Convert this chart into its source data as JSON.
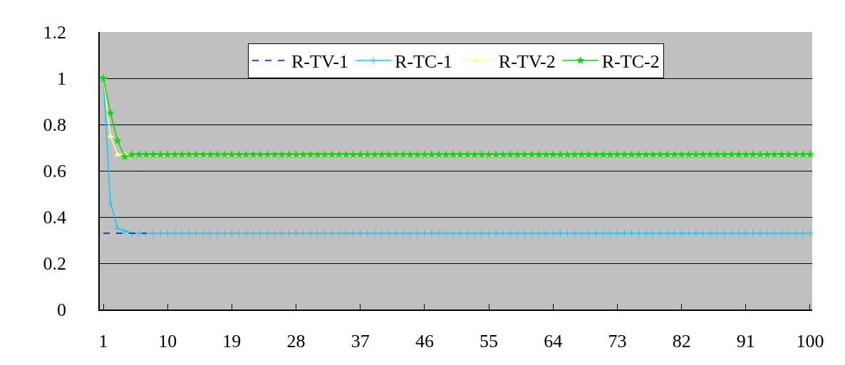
{
  "chart_data": {
    "type": "line",
    "legend": "top",
    "grid": "y",
    "x": [
      1,
      2,
      3,
      4,
      5,
      6,
      7,
      8,
      9,
      10,
      11,
      12,
      13,
      14,
      15,
      16,
      17,
      18,
      19,
      20,
      21,
      22,
      23,
      24,
      25,
      26,
      27,
      28,
      29,
      30,
      31,
      32,
      33,
      34,
      35,
      36,
      37,
      38,
      39,
      40,
      41,
      42,
      43,
      44,
      45,
      46,
      47,
      48,
      49,
      50,
      51,
      52,
      53,
      54,
      55,
      56,
      57,
      58,
      59,
      60,
      61,
      62,
      63,
      64,
      65,
      66,
      67,
      68,
      69,
      70,
      71,
      72,
      73,
      74,
      75,
      76,
      77,
      78,
      79,
      80,
      81,
      82,
      83,
      84,
      85,
      86,
      87,
      88,
      89,
      90,
      91,
      92,
      93,
      94,
      95,
      96,
      97,
      98,
      99,
      100
    ],
    "xlim": [
      0.5,
      100.3
    ],
    "xticks": [
      1,
      10,
      19,
      28,
      37,
      46,
      55,
      64,
      73,
      82,
      91,
      100
    ],
    "ylim": [
      0,
      1.2
    ],
    "yticks": [
      0,
      0.2,
      0.4,
      0.6,
      0.8,
      1,
      1.2
    ],
    "series": [
      {
        "name": "R-TV-1",
        "color": "#0000ff",
        "marker": "none",
        "line_style": "dashed",
        "values": [
          0.33,
          0.33,
          0.33,
          0.33,
          0.33,
          0.33,
          0.33,
          null,
          null,
          null,
          null,
          null,
          null,
          null,
          null,
          null,
          null,
          null,
          null,
          null,
          null,
          null,
          null,
          null,
          null,
          null,
          null,
          null,
          null,
          null,
          null,
          null,
          null,
          null,
          null,
          null,
          null,
          null,
          null,
          null,
          null,
          null,
          null,
          null,
          null,
          null,
          null,
          null,
          null,
          null,
          null,
          null,
          null,
          null,
          null,
          null,
          null,
          null,
          null,
          null,
          null,
          null,
          null,
          null,
          null,
          null,
          null,
          null,
          null,
          null,
          null,
          null,
          null,
          null,
          null,
          null,
          null,
          null,
          null,
          null,
          null,
          null,
          null,
          null,
          null,
          null,
          null,
          null,
          null,
          null,
          null,
          null,
          null,
          null,
          null,
          null,
          null,
          null,
          null,
          null
        ]
      },
      {
        "name": "R-TC-1",
        "color": "#00ccff",
        "marker": "cross",
        "values": [
          1,
          0.46,
          0.35,
          0.34,
          0.33,
          0.33,
          0.33,
          0.33,
          0.33,
          0.33,
          0.33,
          0.33,
          0.33,
          0.33,
          0.33,
          0.33,
          0.33,
          0.33,
          0.33,
          0.33,
          0.33,
          0.33,
          0.33,
          0.33,
          0.33,
          0.33,
          0.33,
          0.33,
          0.33,
          0.33,
          0.33,
          0.33,
          0.33,
          0.33,
          0.33,
          0.33,
          0.33,
          0.33,
          0.33,
          0.33,
          0.33,
          0.33,
          0.33,
          0.33,
          0.33,
          0.33,
          0.33,
          0.33,
          0.33,
          0.33,
          0.33,
          0.33,
          0.33,
          0.33,
          0.33,
          0.33,
          0.33,
          0.33,
          0.33,
          0.33,
          0.33,
          0.33,
          0.33,
          0.33,
          0.33,
          0.33,
          0.33,
          0.33,
          0.33,
          0.33,
          0.33,
          0.33,
          0.33,
          0.33,
          0.33,
          0.33,
          0.33,
          0.33,
          0.33,
          0.33,
          0.33,
          0.33,
          0.33,
          0.33,
          0.33,
          0.33,
          0.33,
          0.33,
          0.33,
          0.33,
          0.33,
          0.33,
          0.33,
          0.33,
          0.33,
          0.33,
          0.33,
          0.33,
          0.33,
          0.33
        ]
      },
      {
        "name": "R-TV-2",
        "color": "#ffff99",
        "marker": "triangle",
        "values": [
          1,
          0.75,
          0.67,
          0.67,
          0.67,
          0.67,
          0.67,
          0.67,
          0.67,
          0.67,
          0.67,
          0.67,
          0.67,
          0.67,
          0.67,
          0.67,
          0.67,
          0.67,
          0.67,
          0.67,
          0.67,
          0.67,
          0.67,
          0.67,
          0.67,
          0.67,
          0.67,
          0.67,
          0.67,
          0.67,
          0.67,
          0.67,
          0.67,
          0.67,
          0.67,
          0.67,
          0.67,
          0.67,
          0.67,
          0.67,
          0.67,
          0.67,
          0.67,
          0.67,
          0.67,
          0.67,
          0.67,
          0.67,
          0.67,
          0.67,
          0.67,
          0.67,
          0.67,
          0.67,
          0.67,
          0.67,
          0.67,
          0.67,
          0.67,
          0.67,
          0.67,
          0.67,
          0.67,
          0.67,
          0.67,
          0.67,
          0.67,
          0.67,
          0.67,
          0.67,
          0.67,
          0.67,
          0.67,
          0.67,
          0.67,
          0.67,
          0.67,
          0.67,
          0.67,
          0.67,
          0.67,
          0.67,
          0.67,
          0.67,
          0.67,
          0.67,
          0.67,
          0.67,
          0.67,
          0.67,
          0.67,
          0.67,
          0.67,
          0.67,
          0.67,
          0.67,
          0.67,
          0.67,
          0.67,
          0.67
        ]
      },
      {
        "name": "R-TC-2",
        "color": "#00dd00",
        "marker": "star",
        "values": [
          1,
          0.85,
          0.73,
          0.66,
          0.67,
          0.67,
          0.67,
          0.67,
          0.67,
          0.67,
          0.67,
          0.67,
          0.67,
          0.67,
          0.67,
          0.67,
          0.67,
          0.67,
          0.67,
          0.67,
          0.67,
          0.67,
          0.67,
          0.67,
          0.67,
          0.67,
          0.67,
          0.67,
          0.67,
          0.67,
          0.67,
          0.67,
          0.67,
          0.67,
          0.67,
          0.67,
          0.67,
          0.67,
          0.67,
          0.67,
          0.67,
          0.67,
          0.67,
          0.67,
          0.67,
          0.67,
          0.67,
          0.67,
          0.67,
          0.67,
          0.67,
          0.67,
          0.67,
          0.67,
          0.67,
          0.67,
          0.67,
          0.67,
          0.67,
          0.67,
          0.67,
          0.67,
          0.67,
          0.67,
          0.67,
          0.67,
          0.67,
          0.67,
          0.67,
          0.67,
          0.67,
          0.67,
          0.67,
          0.67,
          0.67,
          0.67,
          0.67,
          0.67,
          0.67,
          0.67,
          0.67,
          0.67,
          0.67,
          0.67,
          0.67,
          0.67,
          0.67,
          0.67,
          0.67,
          0.67,
          0.67,
          0.67,
          0.67,
          0.67,
          0.67,
          0.67,
          0.67,
          0.67,
          0.67,
          0.67
        ]
      }
    ]
  }
}
